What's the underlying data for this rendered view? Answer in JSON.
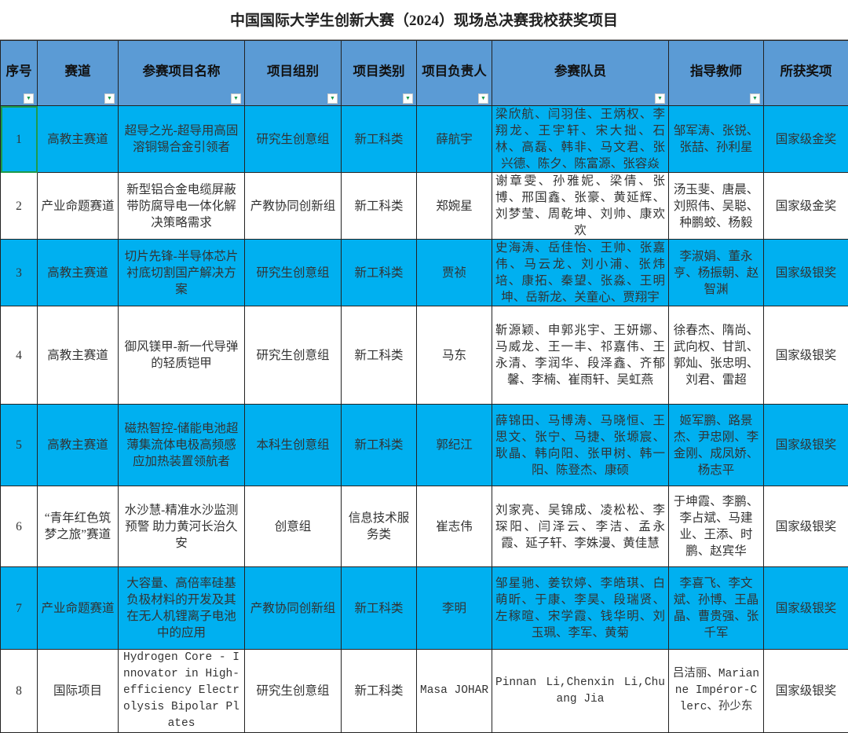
{
  "title": "中国国际大学生创新大赛（2024）现场总决赛我校获奖项目",
  "colors": {
    "header_bg": "#5b9bd5",
    "highlight_row": "#00b0f0",
    "selected_cell_border": "#1e9a4a"
  },
  "columns": [
    "序号",
    "赛道",
    "参赛项目名称",
    "项目组别",
    "项目类别",
    "项目负责人",
    "参赛队员",
    "指导教师",
    "所获奖项"
  ],
  "rows": [
    {
      "no": "1",
      "track": "高教主赛道",
      "project": "超导之光-超导用高固溶铜锡合金引领者",
      "group": "研究生创意组",
      "category": "新工科类",
      "leader": "薛航宇",
      "members": "梁欣航、闫羽佳、王炳权、李翔龙、王宇轩、宋大拙、石林、高磊、韩非、马文君、张兴德、陈夕、陈富源、张容焱",
      "advisors": "邹军涛、张锐、张喆、孙利星",
      "award": "国家级金奖",
      "highlight": true
    },
    {
      "no": "2",
      "track": "产业命题赛道",
      "project": "新型铝合金电缆屏蔽带防腐导电一体化解决策略需求",
      "group": "产教协同创新组",
      "category": "新工科类",
      "leader": "郑婉星",
      "members": "谢章雯、孙雅妮、梁倩、张博、邢国鑫、张豪、黄延辉、刘梦莹、周乾坤、刘帅、康欢欢",
      "advisors": "汤玉斐、唐晨、刘照伟、吴聪、种鹏蛟、杨毅",
      "award": "国家级金奖",
      "highlight": false
    },
    {
      "no": "3",
      "track": "高教主赛道",
      "project": "切片先锋-半导体芯片衬底切割国产解决方案",
      "group": "研究生创意组",
      "category": "新工科类",
      "leader": "贾祯",
      "members": "史海涛、岳佳怡、王帅、张嘉伟、马云龙、刘小浦、张炜培、康拓、秦望、张淼、王明坤、岳新龙、关童心、贾翔宇",
      "advisors": "李淑娟、董永亨、杨振朝、赵智渊",
      "award": "国家级银奖",
      "highlight": true
    },
    {
      "no": "4",
      "track": "高教主赛道",
      "project": "御风镁甲-新一代导弹的轻质铠甲",
      "group": "研究生创意组",
      "category": "新工科类",
      "leader": "马东",
      "members": "靳源颖、申郭兆宇、王妍娜、马威龙、王一丰、祁嘉伟、王永清、李润华、段泽鑫、齐郁馨、李楠、崔雨轩、吴虹燕",
      "advisors": "徐春杰、隋尚、武向权、甘凯、郭灿、张忠明、刘君、雷超",
      "award": "国家级银奖",
      "highlight": false
    },
    {
      "no": "5",
      "track": "高教主赛道",
      "project": "磁热智控-储能电池超薄集流体电极高频感应加热装置领航者",
      "group": "本科生创意组",
      "category": "新工科类",
      "leader": "郭纪江",
      "members": "薛锦田、马博涛、马晓恒、王思文、张宁、马捷、张塬宸、耿晶、韩向阳、张甲树、韩一阳、陈登杰、康硕",
      "advisors": "姬军鹏、路景杰、尹忠刚、李金刚、成凤娇、杨志平",
      "award": "国家级银奖",
      "highlight": true
    },
    {
      "no": "6",
      "track": "“青年红色筑梦之旅”赛道",
      "project": "水沙慧-精准水沙监测预警 助力黄河长治久安",
      "group": "创意组",
      "category": "信息技术服务类",
      "leader": "崔志伟",
      "members": "刘家亮、吴锦成、凌松松、李琛阳、闫泽云、李洁、孟永霞、延子轩、李姝漫、黄佳慧",
      "advisors": "于坤霞、李鹏、李占斌、马建业、王添、时鹏、赵宾华",
      "award": "国家级银奖",
      "highlight": false
    },
    {
      "no": "7",
      "track": "产业命题赛道",
      "project": "大容量、高倍率硅基负极材料的开发及其在无人机锂离子电池中的应用",
      "group": "产教协同创新组",
      "category": "新工科类",
      "leader": "李明",
      "members": "邹星驰、姜钦婷、李皓琪、白萌昕、于康、李昊、段瑞贤、左稼暄、宋学霞、钱华明、刘玉珮、李军、黄菊",
      "advisors": "李喜飞、李文斌、孙博、王晶晶、曹贵强、张千军",
      "award": "国家级银奖",
      "highlight": true
    },
    {
      "no": "8",
      "track": "国际项目",
      "project": "Hydrogen Core - Innovator in High-efficiency Electrolysis Bipolar Plates",
      "group": "研究生创意组",
      "category": "新工科类",
      "leader": "Masa JOHAR",
      "members": "Pinnan Li,Chenxin Li,Chuang Jia",
      "advisors": "吕洁丽、Marianne Impéror-Clerc、孙少东",
      "award": "国家级银奖",
      "highlight": false,
      "mono": true
    }
  ]
}
